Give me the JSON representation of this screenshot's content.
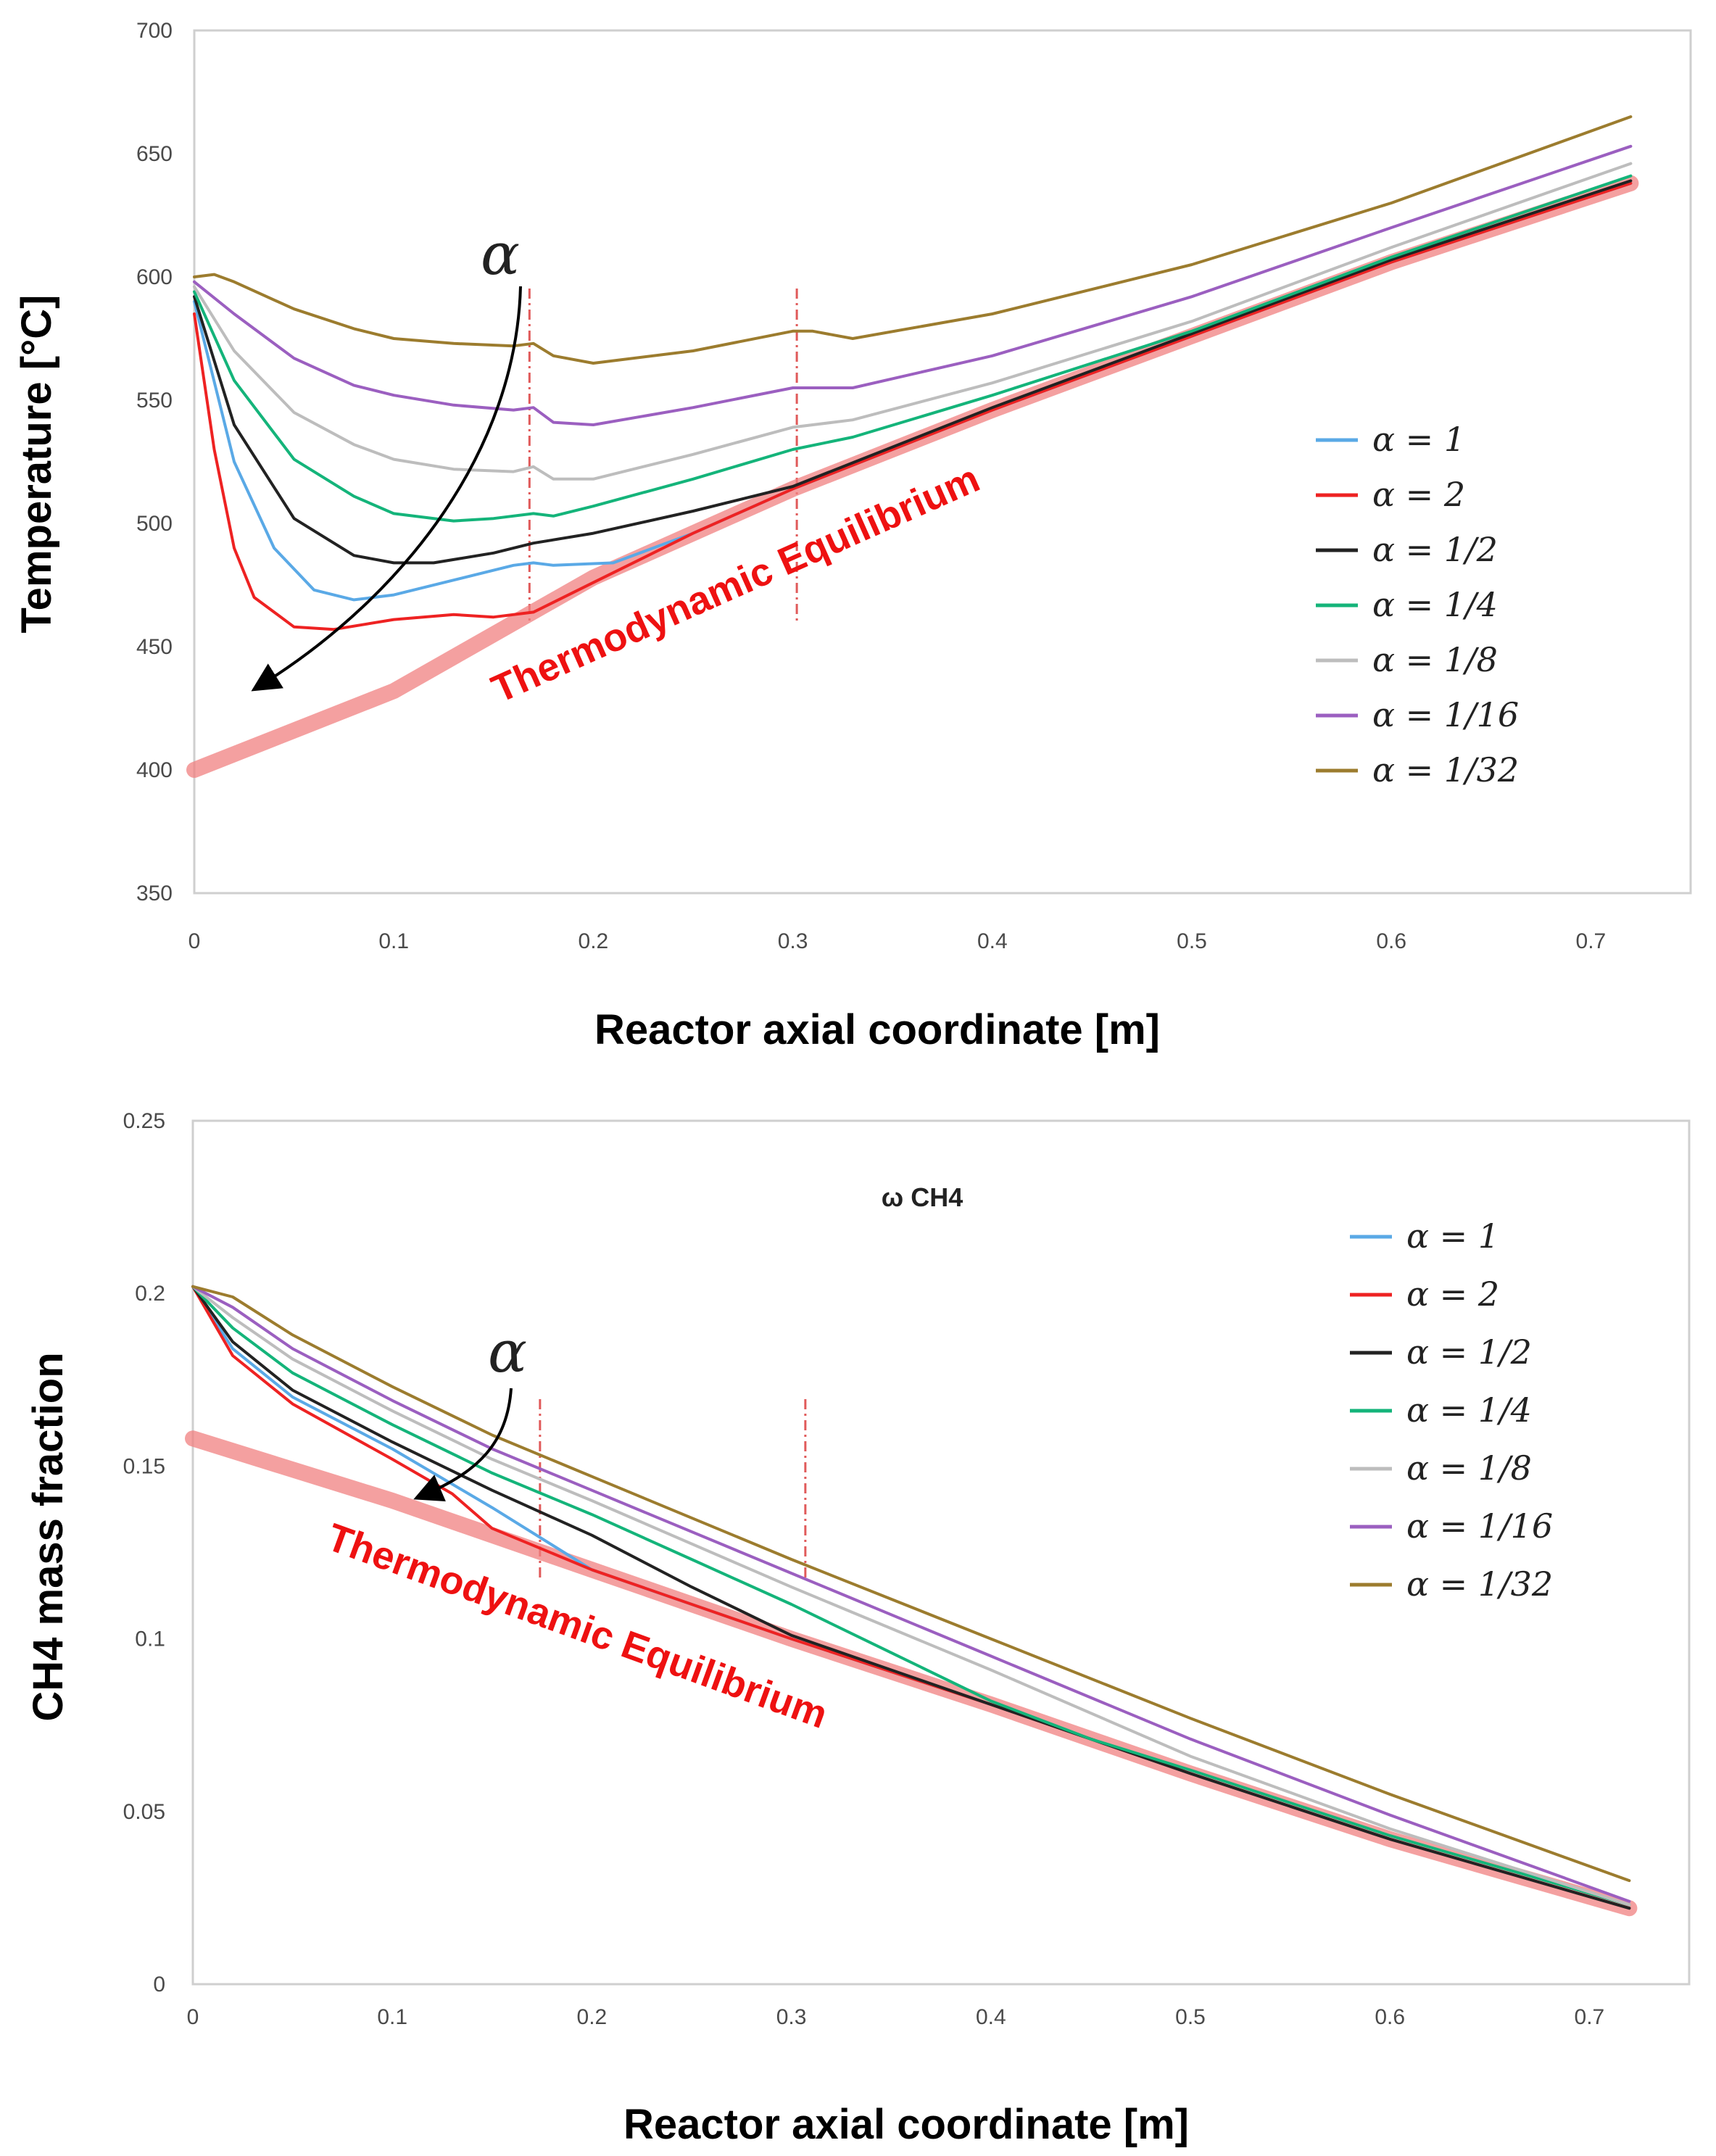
{
  "legend_labels": [
    "α = 1",
    "α = 2",
    "α = 1/2",
    "α = 1/4",
    "α = 1/8",
    "α = 1/16",
    "α = 1/32"
  ],
  "colors": {
    "a1": "#5aa9e6",
    "a2": "#ee2222",
    "a1_2": "#222222",
    "a1_4": "#14b47a",
    "a1_8": "#bdbdbd",
    "a1_16": "#9b5fc0",
    "a1_32": "#9c7c2e",
    "equilibrium": "#f08080",
    "marker": "#e05a5a"
  },
  "chart_data": [
    {
      "type": "line",
      "ylabel": "Temperature [°C]",
      "xlabel": "Reactor axial coordinate [m]",
      "xlim": [
        0,
        0.75
      ],
      "ylim": [
        350,
        700
      ],
      "xticks": [
        "0",
        "0.1",
        "0.2",
        "0.3",
        "0.4",
        "0.5",
        "0.6",
        "0.7"
      ],
      "yticks": [
        "350",
        "400",
        "450",
        "500",
        "550",
        "600",
        "650",
        "700"
      ],
      "grid": false,
      "legend": "right",
      "annotation_alpha": "α",
      "equilibrium_label": "Thermodynamic  Equilibrium",
      "markers_x": [
        0.168,
        0.302
      ],
      "equilibrium": {
        "x": [
          0,
          0.1,
          0.2,
          0.3,
          0.4,
          0.5,
          0.6,
          0.72
        ],
        "y": [
          400,
          432,
          478,
          514,
          546,
          576,
          606,
          638
        ]
      },
      "series": [
        {
          "name": "α = 1",
          "color_key": "a1",
          "x": [
            0,
            0.02,
            0.04,
            0.06,
            0.08,
            0.1,
            0.13,
            0.16,
            0.17,
            0.18,
            0.21,
            0.25,
            0.3,
            0.4,
            0.5,
            0.6,
            0.72
          ],
          "y": [
            590,
            525,
            490,
            473,
            469,
            471,
            477,
            483,
            484,
            483,
            484,
            496,
            514,
            546,
            576,
            606,
            638
          ]
        },
        {
          "name": "α = 2",
          "color_key": "a2",
          "x": [
            0,
            0.01,
            0.02,
            0.03,
            0.05,
            0.07,
            0.1,
            0.13,
            0.15,
            0.17,
            0.2,
            0.25,
            0.3,
            0.4,
            0.5,
            0.6,
            0.72
          ],
          "y": [
            585,
            530,
            490,
            470,
            458,
            457,
            461,
            463,
            462,
            464,
            476,
            496,
            514,
            546,
            576,
            606,
            638
          ]
        },
        {
          "name": "α = 1/2",
          "color_key": "a1_2",
          "x": [
            0,
            0.02,
            0.05,
            0.08,
            0.1,
            0.12,
            0.15,
            0.17,
            0.2,
            0.25,
            0.3,
            0.4,
            0.5,
            0.6,
            0.72
          ],
          "y": [
            592,
            540,
            502,
            487,
            484,
            484,
            488,
            492,
            496,
            505,
            515,
            547,
            577,
            607,
            639
          ]
        },
        {
          "name": "α = 1/4",
          "color_key": "a1_4",
          "x": [
            0,
            0.02,
            0.05,
            0.08,
            0.1,
            0.13,
            0.15,
            0.17,
            0.18,
            0.2,
            0.25,
            0.3,
            0.33,
            0.4,
            0.5,
            0.6,
            0.72
          ],
          "y": [
            594,
            558,
            526,
            511,
            504,
            501,
            502,
            504,
            503,
            507,
            518,
            530,
            535,
            552,
            578,
            608,
            641
          ]
        },
        {
          "name": "α = 1/8",
          "color_key": "a1_8",
          "x": [
            0,
            0.02,
            0.05,
            0.08,
            0.1,
            0.13,
            0.16,
            0.17,
            0.18,
            0.2,
            0.25,
            0.3,
            0.33,
            0.4,
            0.5,
            0.6,
            0.72
          ],
          "y": [
            596,
            570,
            545,
            532,
            526,
            522,
            521,
            523,
            518,
            518,
            528,
            539,
            542,
            557,
            582,
            612,
            646
          ]
        },
        {
          "name": "α = 1/16",
          "color_key": "a1_16",
          "x": [
            0,
            0.02,
            0.05,
            0.08,
            0.1,
            0.13,
            0.16,
            0.17,
            0.18,
            0.2,
            0.25,
            0.3,
            0.33,
            0.4,
            0.5,
            0.6,
            0.72
          ],
          "y": [
            598,
            585,
            567,
            556,
            552,
            548,
            546,
            547,
            541,
            540,
            547,
            555,
            555,
            568,
            592,
            620,
            653
          ]
        },
        {
          "name": "α = 1/32",
          "color_key": "a1_32",
          "x": [
            0,
            0.01,
            0.02,
            0.05,
            0.08,
            0.1,
            0.13,
            0.16,
            0.17,
            0.18,
            0.2,
            0.25,
            0.3,
            0.31,
            0.33,
            0.4,
            0.5,
            0.6,
            0.72
          ],
          "y": [
            600,
            601,
            598,
            587,
            579,
            575,
            573,
            572,
            573,
            568,
            565,
            570,
            578,
            578,
            575,
            585,
            605,
            630,
            665
          ]
        }
      ]
    },
    {
      "type": "line",
      "ylabel": "CH4 mass fraction",
      "xlabel": "Reactor axial coordinate [m]",
      "title": "ω CH4",
      "xlim": [
        0,
        0.75
      ],
      "ylim": [
        0,
        0.25
      ],
      "xticks": [
        "0",
        "0.1",
        "0.2",
        "0.3",
        "0.4",
        "0.5",
        "0.6",
        "0.7"
      ],
      "yticks": [
        "0",
        "0.05",
        "0.1",
        "0.15",
        "0.2",
        "0.25"
      ],
      "grid": false,
      "legend": "top-right",
      "annotation_alpha": "α",
      "equilibrium_label": "Thermodynamic  Equilibrium",
      "markers_x": [
        0.174,
        0.307
      ],
      "equilibrium": {
        "x": [
          0,
          0.1,
          0.2,
          0.3,
          0.4,
          0.5,
          0.6,
          0.72
        ],
        "y": [
          0.158,
          0.14,
          0.12,
          0.1,
          0.081,
          0.061,
          0.042,
          0.022
        ]
      },
      "series": [
        {
          "name": "α = 1",
          "color_key": "a1",
          "x": [
            0,
            0.02,
            0.05,
            0.1,
            0.15,
            0.2,
            0.22,
            0.3,
            0.4,
            0.5,
            0.6,
            0.72
          ],
          "y": [
            0.202,
            0.184,
            0.17,
            0.155,
            0.138,
            0.12,
            0.116,
            0.1,
            0.081,
            0.061,
            0.042,
            0.022
          ]
        },
        {
          "name": "α = 2",
          "color_key": "a2",
          "x": [
            0,
            0.02,
            0.05,
            0.1,
            0.13,
            0.15,
            0.2,
            0.3,
            0.4,
            0.5,
            0.6,
            0.72
          ],
          "y": [
            0.202,
            0.182,
            0.168,
            0.152,
            0.142,
            0.132,
            0.12,
            0.1,
            0.081,
            0.061,
            0.042,
            0.022
          ]
        },
        {
          "name": "α = 1/2",
          "color_key": "a1_2",
          "x": [
            0,
            0.02,
            0.05,
            0.1,
            0.15,
            0.2,
            0.25,
            0.3,
            0.35,
            0.4,
            0.5,
            0.6,
            0.72
          ],
          "y": [
            0.202,
            0.186,
            0.172,
            0.157,
            0.143,
            0.13,
            0.115,
            0.101,
            0.091,
            0.081,
            0.061,
            0.042,
            0.022
          ]
        },
        {
          "name": "α = 1/4",
          "color_key": "a1_4",
          "x": [
            0,
            0.02,
            0.05,
            0.1,
            0.15,
            0.2,
            0.25,
            0.3,
            0.35,
            0.4,
            0.45,
            0.5,
            0.6,
            0.72
          ],
          "y": [
            0.202,
            0.19,
            0.177,
            0.162,
            0.148,
            0.136,
            0.123,
            0.11,
            0.096,
            0.082,
            0.071,
            0.062,
            0.043,
            0.023
          ]
        },
        {
          "name": "α = 1/8",
          "color_key": "a1_8",
          "x": [
            0,
            0.02,
            0.05,
            0.1,
            0.15,
            0.2,
            0.3,
            0.4,
            0.5,
            0.6,
            0.72
          ],
          "y": [
            0.202,
            0.193,
            0.181,
            0.166,
            0.152,
            0.14,
            0.115,
            0.091,
            0.066,
            0.045,
            0.023
          ]
        },
        {
          "name": "α = 1/16",
          "color_key": "a1_16",
          "x": [
            0,
            0.02,
            0.05,
            0.1,
            0.15,
            0.2,
            0.3,
            0.4,
            0.5,
            0.6,
            0.72
          ],
          "y": [
            0.202,
            0.196,
            0.184,
            0.169,
            0.155,
            0.143,
            0.119,
            0.095,
            0.071,
            0.049,
            0.024
          ]
        },
        {
          "name": "α = 1/32",
          "color_key": "a1_32",
          "x": [
            0,
            0.02,
            0.05,
            0.1,
            0.15,
            0.2,
            0.3,
            0.4,
            0.5,
            0.6,
            0.72
          ],
          "y": [
            0.202,
            0.199,
            0.188,
            0.173,
            0.159,
            0.147,
            0.123,
            0.1,
            0.077,
            0.055,
            0.03
          ]
        }
      ]
    }
  ]
}
